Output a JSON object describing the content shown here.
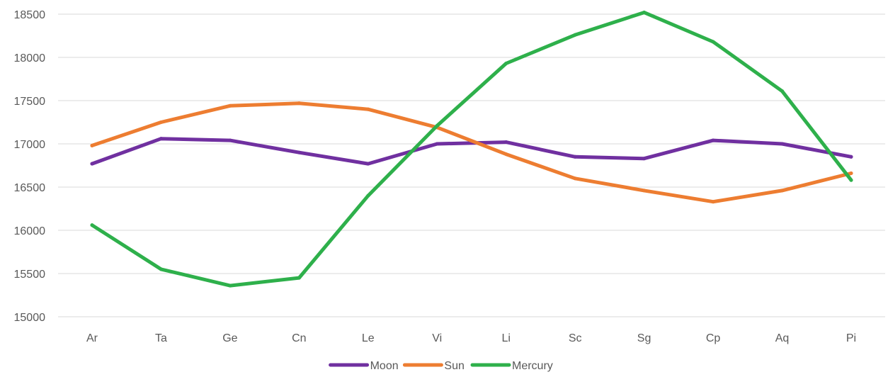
{
  "chart_data": {
    "type": "line",
    "title": "",
    "xlabel": "",
    "ylabel": "",
    "categories": [
      "Ar",
      "Ta",
      "Ge",
      "Cn",
      "Le",
      "Vi",
      "Li",
      "Sc",
      "Sg",
      "Cp",
      "Aq",
      "Pi"
    ],
    "ylim": [
      15000,
      18500
    ],
    "yticks": [
      "15000",
      "15500",
      "16000",
      "16500",
      "17000",
      "17500",
      "18000",
      "18500"
    ],
    "grid": true,
    "legend_position": "bottom",
    "series": [
      {
        "name": "Moon",
        "color": "#7030a0",
        "values": [
          16770,
          17060,
          17040,
          16900,
          16770,
          17000,
          17020,
          16850,
          16830,
          17040,
          17000,
          16850
        ]
      },
      {
        "name": "Sun",
        "color": "#ed7d31",
        "values": [
          16980,
          17250,
          17440,
          17470,
          17400,
          17190,
          16880,
          16600,
          16460,
          16330,
          16460,
          16660
        ]
      },
      {
        "name": "Mercury",
        "color": "#2eb04b",
        "values": [
          16060,
          15550,
          15360,
          15450,
          16400,
          17210,
          17930,
          18260,
          18520,
          18180,
          17610,
          16580
        ]
      }
    ]
  }
}
